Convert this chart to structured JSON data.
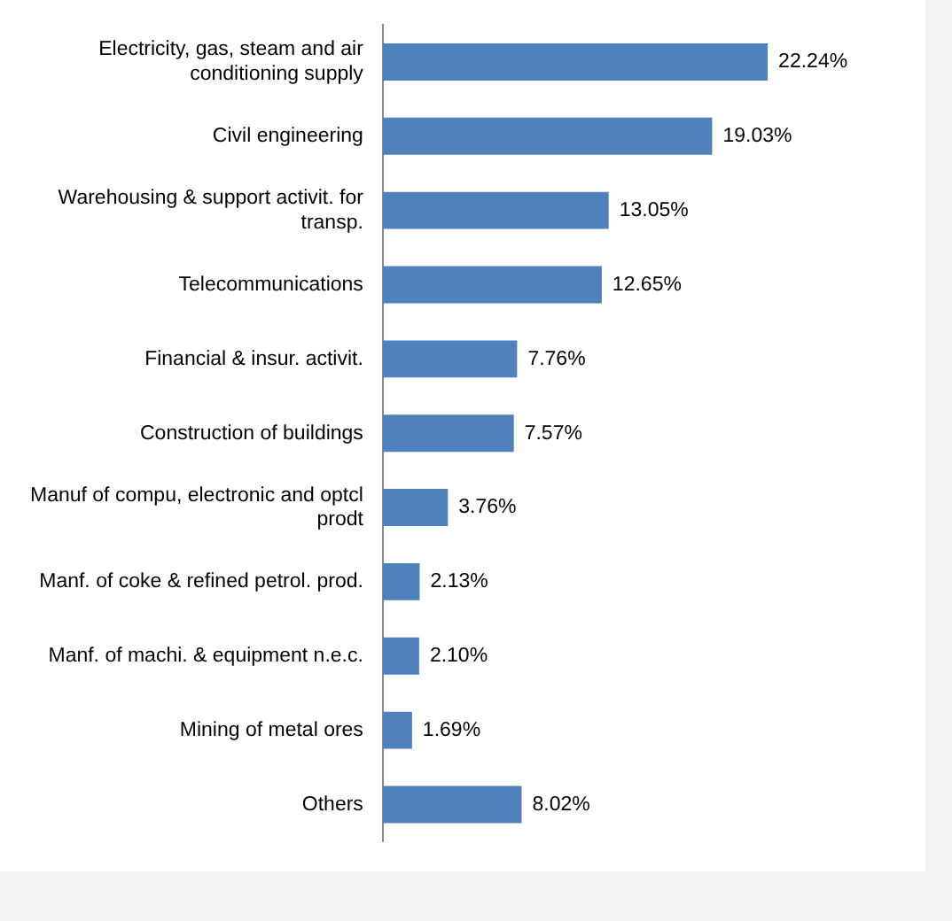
{
  "chart_data": {
    "type": "bar",
    "orientation": "horizontal",
    "color": "#4f81bd",
    "categories": [
      "Electricity, gas, steam and air conditioning supply",
      "Civil engineering",
      "Warehousing & support activit. for transp.",
      "Telecommunications",
      "Financial & insur. activit.",
      "Construction of buildings",
      "Manuf of compu, electronic and optcl prodt",
      "Manf. of coke & refined petrol. prod.",
      "Manf. of machi. & equipment n.e.c.",
      "Mining of metal ores",
      "Others"
    ],
    "values": [
      22.24,
      19.03,
      13.05,
      12.65,
      7.76,
      7.57,
      3.76,
      2.13,
      2.1,
      1.69,
      8.02
    ],
    "value_labels": [
      "22.24%",
      "19.03%",
      "13.05%",
      "12.65%",
      "7.76%",
      "7.57%",
      "3.76%",
      "2.13%",
      "2.10%",
      "1.69%",
      "8.02%"
    ],
    "legend": false
  }
}
